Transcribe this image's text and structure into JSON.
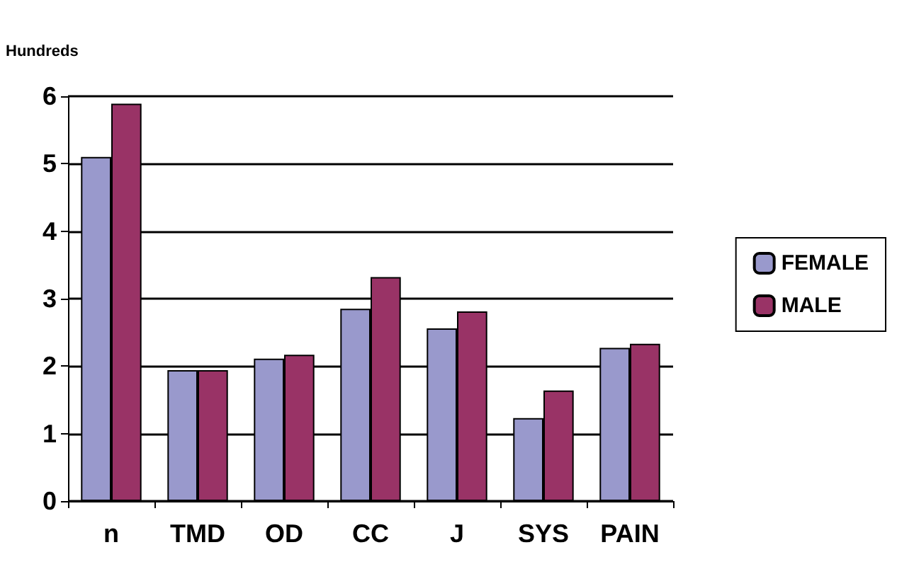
{
  "chart_data": {
    "type": "bar",
    "ylabel": "Hundreds",
    "categories": [
      "n",
      "TMD",
      "OD",
      "CC",
      "J",
      "SYS",
      "PAIN"
    ],
    "series": [
      {
        "name": "FEMALE",
        "color": "#9999cc",
        "values": [
          5.1,
          1.94,
          2.11,
          2.85,
          2.56,
          1.23,
          2.27
        ]
      },
      {
        "name": "MALE",
        "color": "#993366",
        "values": [
          5.89,
          1.94,
          2.17,
          3.32,
          2.81,
          1.64,
          2.33
        ]
      }
    ],
    "ylim": [
      0,
      6
    ],
    "yticks": [
      0,
      1,
      2,
      3,
      4,
      5,
      6
    ],
    "grid": "y",
    "legend": "right"
  }
}
